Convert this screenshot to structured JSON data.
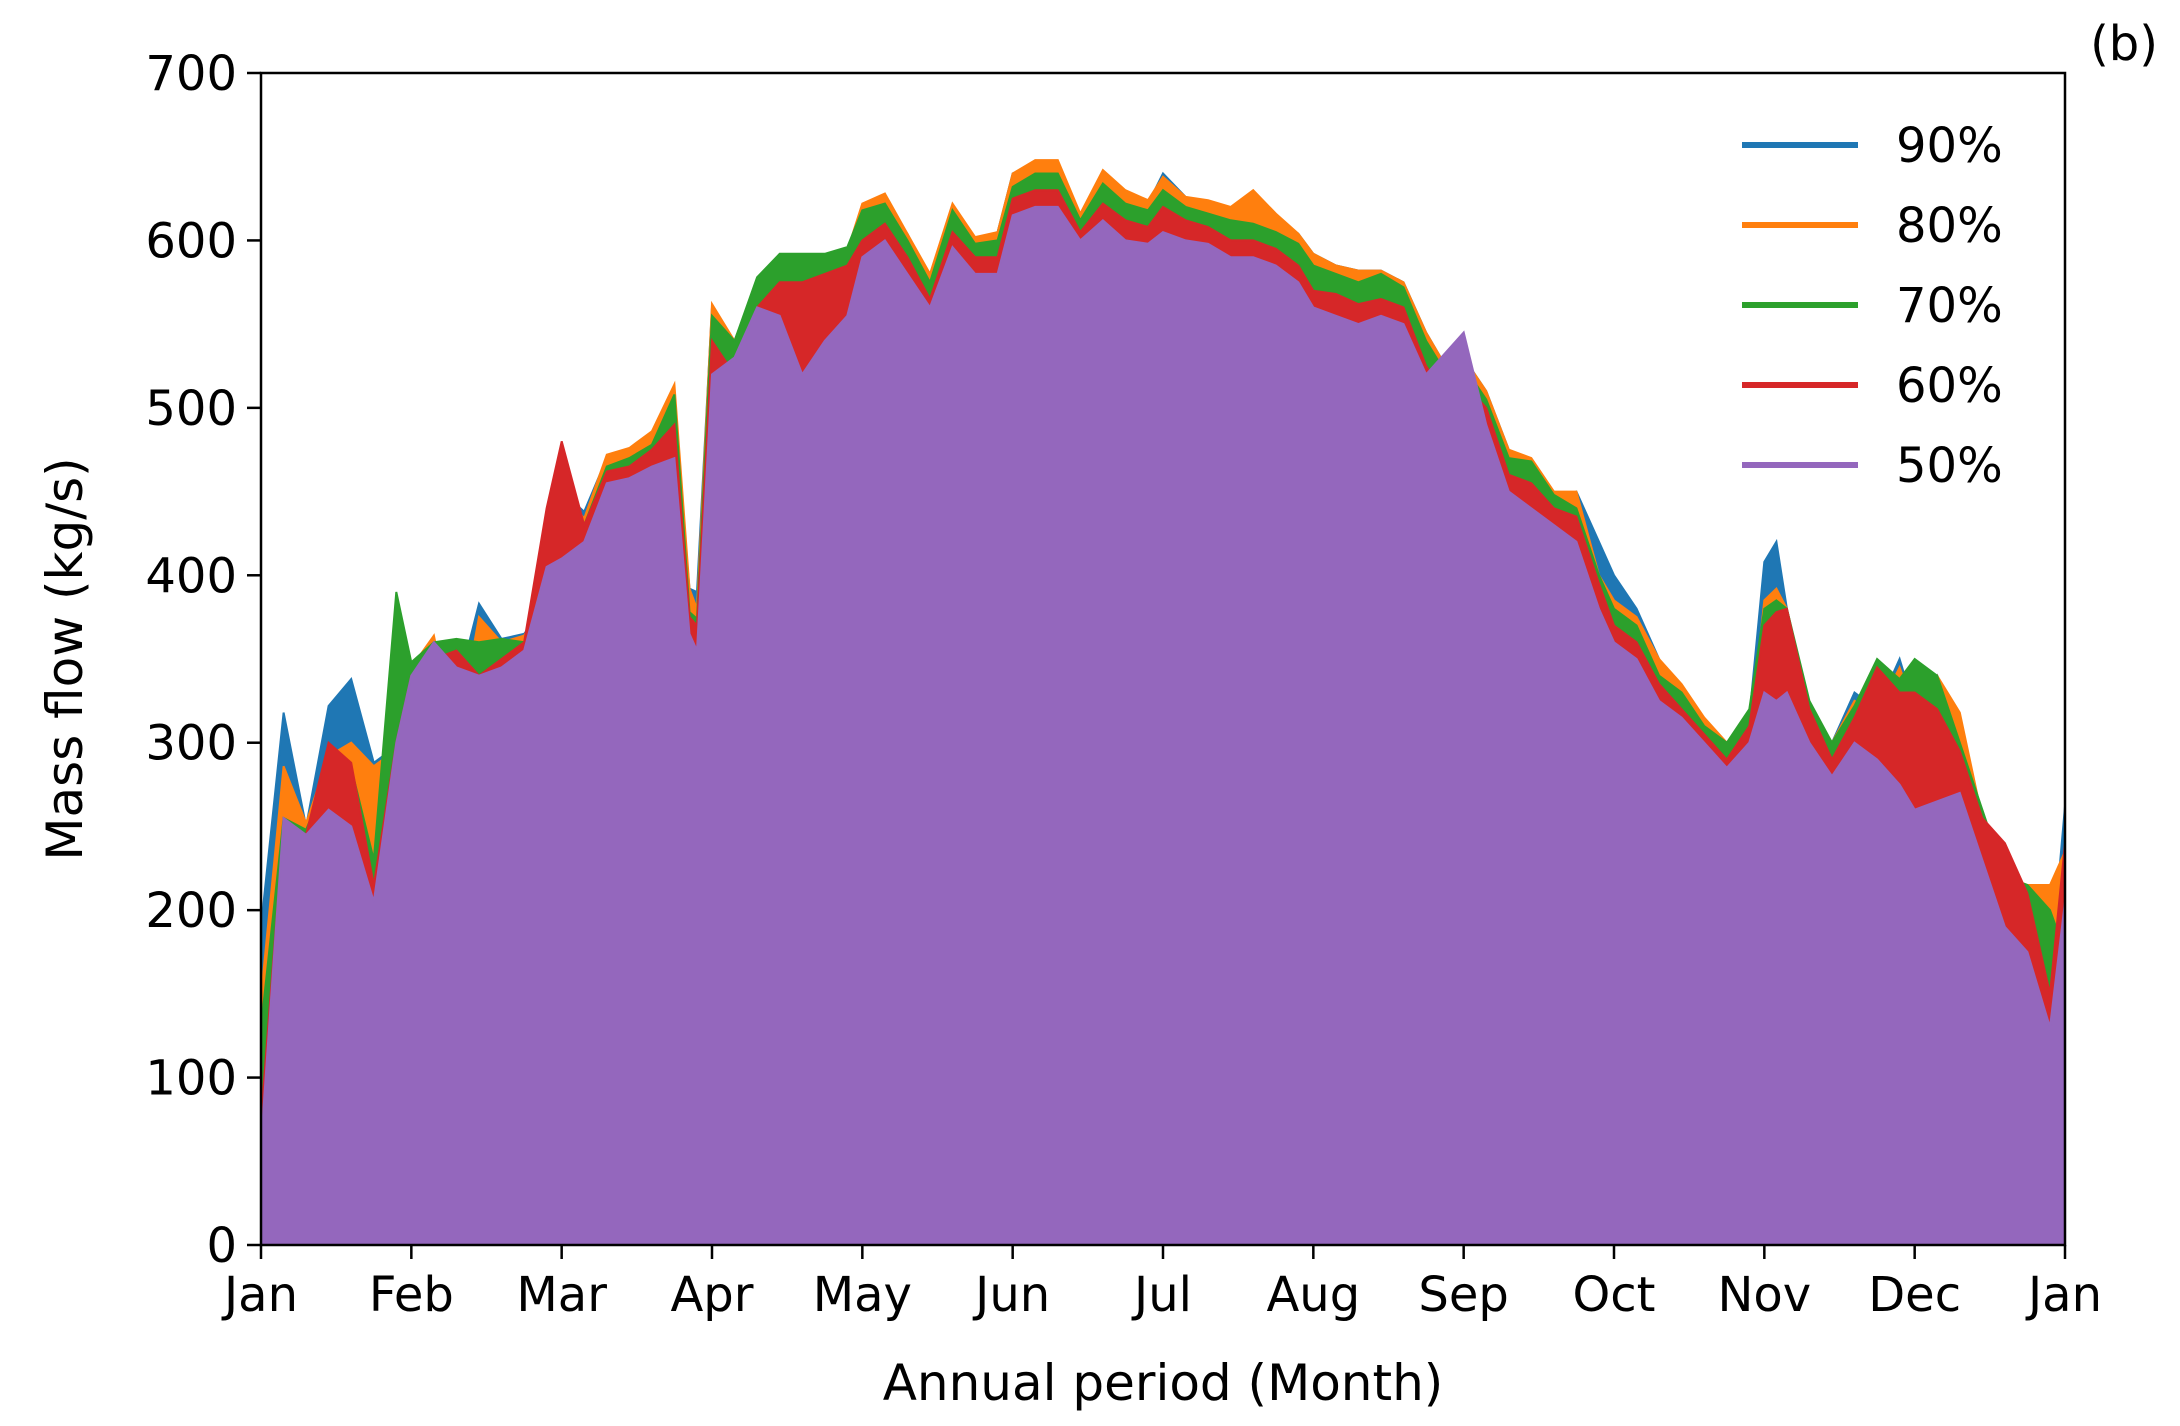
{
  "panel_label": "(b)",
  "chart_data": {
    "type": "area",
    "xlabel": "Annual period (Month)",
    "ylabel": "Mass flow (kg/s)",
    "xlim": [
      "Jan",
      "Jan"
    ],
    "ylim": [
      0,
      700
    ],
    "x_ticks": [
      "Jan",
      "Feb",
      "Mar",
      "Apr",
      "May",
      "Jun",
      "Jul",
      "Aug",
      "Sep",
      "Oct",
      "Nov",
      "Dec",
      "Jan"
    ],
    "y_ticks": [
      0,
      100,
      200,
      300,
      400,
      500,
      600,
      700
    ],
    "grid": false,
    "legend_position": "top-right",
    "x_unit": "month",
    "x_points": [
      0.0,
      0.15,
      0.3,
      0.45,
      0.6,
      0.75,
      0.9,
      1.0,
      1.15,
      1.3,
      1.45,
      1.6,
      1.75,
      1.9,
      2.0,
      2.15,
      2.3,
      2.45,
      2.6,
      2.75,
      2.85,
      2.9,
      3.0,
      3.15,
      3.3,
      3.45,
      3.6,
      3.75,
      3.9,
      4.0,
      4.15,
      4.3,
      4.45,
      4.6,
      4.75,
      4.9,
      5.0,
      5.15,
      5.3,
      5.45,
      5.6,
      5.75,
      5.9,
      6.0,
      6.15,
      6.3,
      6.45,
      6.6,
      6.75,
      6.9,
      7.0,
      7.15,
      7.3,
      7.45,
      7.6,
      7.75,
      7.9,
      8.0,
      8.15,
      8.3,
      8.45,
      8.6,
      8.75,
      8.9,
      9.0,
      9.15,
      9.3,
      9.45,
      9.6,
      9.75,
      9.9,
      10.0,
      10.08,
      10.15,
      10.3,
      10.45,
      10.6,
      10.75,
      10.9,
      11.0,
      11.15,
      11.3,
      11.45,
      11.6,
      11.75,
      11.9,
      12.0
    ],
    "series": [
      {
        "name": "90%",
        "color": "#1f77b4",
        "values": [
          190,
          318,
          250,
          322,
          338,
          288,
          298,
          345,
          352,
          330,
          383,
          362,
          365,
          382,
          450,
          438,
          470,
          474,
          478,
          490,
          392,
          390,
          560,
          540,
          575,
          590,
          590,
          590,
          590,
          620,
          625,
          604,
          578,
          620,
          600,
          605,
          640,
          646,
          646,
          615,
          640,
          628,
          622,
          640,
          626,
          622,
          618,
          622,
          614,
          604,
          592,
          585,
          582,
          582,
          575,
          545,
          522,
          530,
          510,
          475,
          468,
          445,
          450,
          420,
          400,
          380,
          350,
          330,
          310,
          300,
          315,
          408,
          420,
          380,
          322,
          300,
          330,
          320,
          350,
          320,
          340,
          300,
          240,
          220,
          210,
          160,
          262
        ]
      },
      {
        "name": "80%",
        "color": "#ff7f0e",
        "values": [
          148,
          286,
          252,
          292,
          300,
          286,
          296,
          345,
          364,
          300,
          375,
          360,
          364,
          388,
          450,
          434,
          472,
          476,
          486,
          514,
          392,
          380,
          562,
          540,
          575,
          588,
          590,
          590,
          594,
          622,
          628,
          604,
          580,
          622,
          602,
          605,
          640,
          648,
          648,
          616,
          642,
          630,
          624,
          638,
          626,
          624,
          620,
          630,
          616,
          604,
          592,
          585,
          582,
          582,
          575,
          545,
          522,
          530,
          510,
          475,
          470,
          450,
          450,
          400,
          385,
          375,
          350,
          335,
          315,
          300,
          300,
          385,
          392,
          380,
          322,
          300,
          325,
          318,
          345,
          320,
          340,
          318,
          255,
          220,
          215,
          215,
          235
        ]
      },
      {
        "name": "70%",
        "color": "#2ca02c",
        "values": [
          130,
          255,
          248,
          280,
          285,
          230,
          390,
          348,
          360,
          362,
          360,
          362,
          360,
          378,
          440,
          430,
          465,
          470,
          478,
          508,
          378,
          374,
          555,
          540,
          578,
          592,
          592,
          592,
          596,
          618,
          622,
          600,
          575,
          618,
          598,
          600,
          632,
          640,
          640,
          612,
          634,
          622,
          618,
          630,
          620,
          616,
          612,
          610,
          605,
          598,
          585,
          580,
          575,
          580,
          572,
          540,
          518,
          525,
          505,
          470,
          468,
          448,
          440,
          400,
          380,
          370,
          340,
          330,
          310,
          300,
          320,
          380,
          385,
          380,
          325,
          300,
          322,
          350,
          338,
          350,
          340,
          300,
          260,
          220,
          215,
          200,
          175
        ]
      },
      {
        "name": "60%",
        "color": "#d62728",
        "values": [
          75,
          250,
          245,
          300,
          288,
          215,
          300,
          340,
          350,
          355,
          340,
          350,
          360,
          440,
          480,
          430,
          462,
          465,
          475,
          490,
          375,
          370,
          540,
          520,
          560,
          575,
          575,
          580,
          585,
          600,
          610,
          590,
          565,
          605,
          590,
          590,
          625,
          630,
          630,
          605,
          622,
          612,
          608,
          620,
          612,
          608,
          600,
          600,
          595,
          585,
          570,
          568,
          562,
          565,
          560,
          525,
          505,
          515,
          500,
          460,
          455,
          440,
          435,
          395,
          370,
          360,
          335,
          320,
          305,
          290,
          310,
          370,
          378,
          380,
          320,
          290,
          315,
          345,
          330,
          330,
          320,
          295,
          255,
          240,
          210,
          150,
          240
        ]
      },
      {
        "name": "50%",
        "color": "#9467bd",
        "values": [
          60,
          255,
          245,
          260,
          250,
          205,
          300,
          340,
          360,
          345,
          340,
          345,
          355,
          405,
          410,
          420,
          455,
          458,
          465,
          470,
          365,
          355,
          520,
          530,
          560,
          555,
          520,
          540,
          555,
          590,
          600,
          580,
          560,
          596,
          580,
          580,
          615,
          620,
          620,
          600,
          612,
          600,
          598,
          605,
          600,
          598,
          590,
          590,
          585,
          575,
          560,
          555,
          550,
          555,
          550,
          520,
          535,
          545,
          490,
          450,
          440,
          430,
          420,
          380,
          360,
          350,
          325,
          315,
          300,
          285,
          300,
          330,
          325,
          330,
          300,
          280,
          300,
          290,
          275,
          260,
          265,
          270,
          230,
          190,
          175,
          130,
          205
        ]
      }
    ]
  }
}
